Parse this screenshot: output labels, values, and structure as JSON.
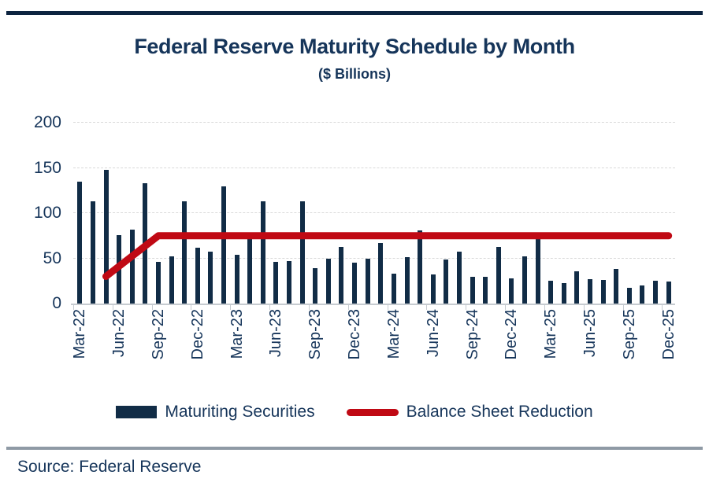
{
  "colors": {
    "navy_bar": "#112c46",
    "navy_text": "#16355a",
    "top_rule_navy": "#0d2440",
    "red_line": "#c00914",
    "gridline_gray": "#d9d9d9",
    "axis_gray": "#c6cbd0",
    "divider_gray": "#8f9aa5",
    "background": "#ffffff"
  },
  "footer": {
    "source": "Source: Federal Reserve"
  },
  "chart_data": {
    "type": "bar",
    "title": "Federal Reserve Maturity Schedule by Month",
    "subtitle": "($ Billions)",
    "xlabel": "",
    "ylabel": "",
    "ylim": [
      0,
      200
    ],
    "y_ticks": [
      0,
      50,
      100,
      150,
      200
    ],
    "x_tick_every": 3,
    "gridlines": "horizontal dashed, light gray",
    "legend_position": "bottom",
    "categories": [
      "Mar-22",
      "Apr-22",
      "May-22",
      "Jun-22",
      "Jul-22",
      "Aug-22",
      "Sep-22",
      "Oct-22",
      "Nov-22",
      "Dec-22",
      "Jan-23",
      "Feb-23",
      "Mar-23",
      "Apr-23",
      "May-23",
      "Jun-23",
      "Jul-23",
      "Aug-23",
      "Sep-23",
      "Oct-23",
      "Nov-23",
      "Dec-23",
      "Jan-24",
      "Feb-24",
      "Mar-24",
      "Apr-24",
      "May-24",
      "Jun-24",
      "Jul-24",
      "Aug-24",
      "Sep-24",
      "Oct-24",
      "Nov-24",
      "Dec-24",
      "Jan-25",
      "Feb-25",
      "Mar-25",
      "Apr-25",
      "May-25",
      "Jun-25",
      "Jul-25",
      "Aug-25",
      "Sep-25",
      "Oct-25",
      "Nov-25",
      "Dec-25"
    ],
    "series": [
      {
        "name": "Maturiting Securities",
        "type": "bar",
        "color": "#112c46",
        "values": [
          135,
          113,
          148,
          76,
          82,
          133,
          46,
          52,
          113,
          62,
          57,
          130,
          54,
          73,
          113,
          46,
          47,
          113,
          39,
          50,
          63,
          45,
          50,
          67,
          33,
          51,
          81,
          32,
          49,
          57,
          30,
          30,
          63,
          28,
          52,
          72,
          25,
          23,
          36,
          27,
          26,
          38,
          17,
          20,
          25,
          24
        ]
      }
    ],
    "line": {
      "name": "Balance Sheet Reduction",
      "type": "line",
      "color": "#c00914",
      "stroke_width": 9,
      "shape": "linear ramp May-22 to Sep-22, then flat through Dec-25",
      "points": [
        {
          "month": "May-22",
          "value": 30
        },
        {
          "month": "Sep-22",
          "value": 75
        },
        {
          "month": "Dec-25",
          "value": 75
        }
      ]
    }
  }
}
